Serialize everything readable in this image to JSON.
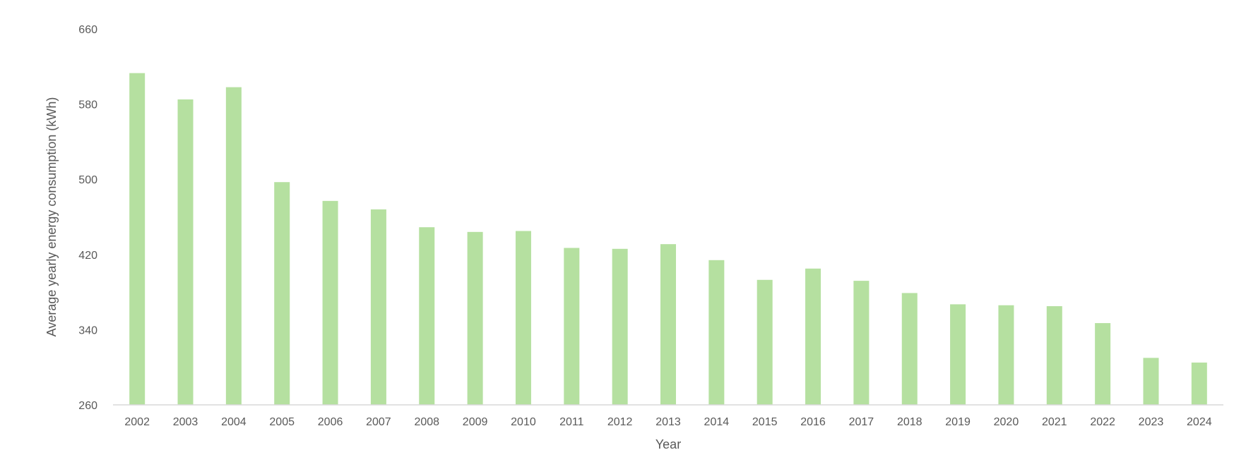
{
  "chart_data": {
    "type": "bar",
    "xlabel": "Year",
    "ylabel": "Average yearly energy consumption (kWh)",
    "ylim": [
      260,
      660
    ],
    "yticks": [
      260,
      340,
      420,
      500,
      580,
      660
    ],
    "grid": false,
    "bar_color": "#b5e0a0",
    "categories": [
      "2002",
      "2003",
      "2004",
      "2005",
      "2006",
      "2007",
      "2008",
      "2009",
      "2010",
      "2011",
      "2012",
      "2013",
      "2014",
      "2015",
      "2016",
      "2017",
      "2018",
      "2019",
      "2020",
      "2021",
      "2022",
      "2023",
      "2024"
    ],
    "values": [
      613,
      585,
      598,
      497,
      477,
      468,
      449,
      444,
      445,
      427,
      426,
      431,
      414,
      393,
      405,
      392,
      379,
      367,
      366,
      365,
      347,
      310,
      305
    ]
  }
}
